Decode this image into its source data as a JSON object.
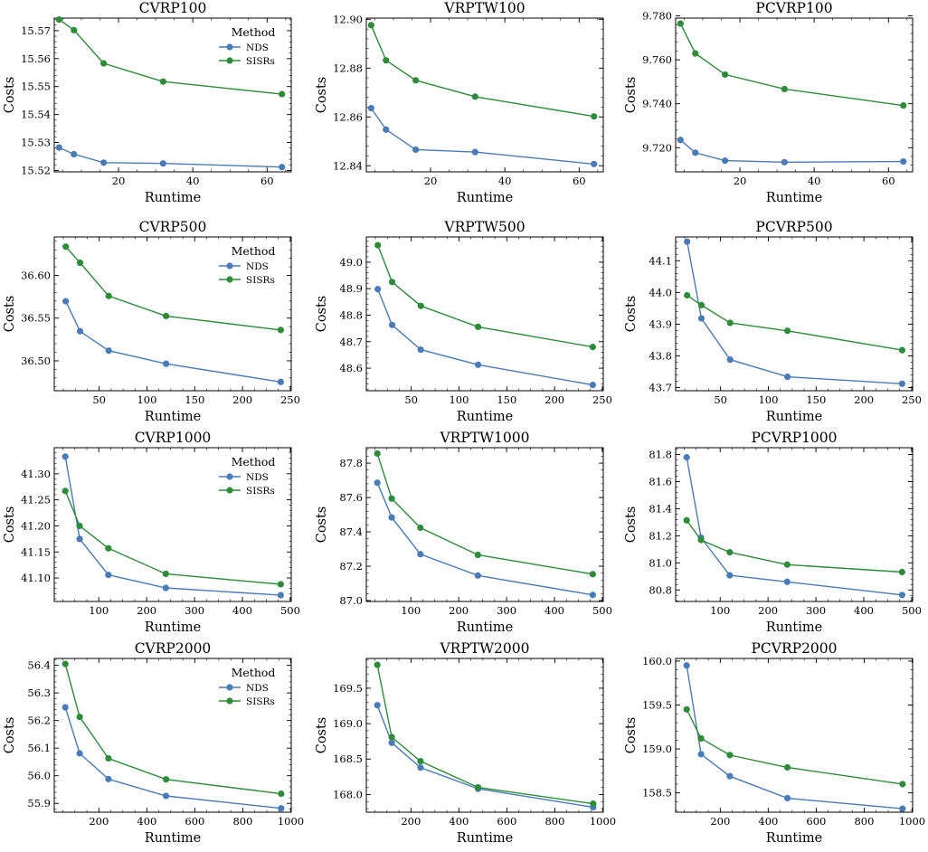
{
  "legend": {
    "title": "Method"
  },
  "colors": {
    "NDS": "#4a7bb7",
    "SISRs": "#2e8b3a"
  },
  "chart_data": [
    {
      "type": "line",
      "title": "CVRP100",
      "xlabel": "Runtime",
      "ylabel": "Costs",
      "x": [
        4,
        8,
        16,
        32,
        64
      ],
      "xlim": [
        2.7,
        66.5
      ],
      "ylim": [
        15.5195,
        15.5745
      ],
      "xticks": [
        20,
        40,
        60
      ],
      "yticks": [
        15.52,
        15.53,
        15.54,
        15.55,
        15.56,
        15.57
      ],
      "ytick_labels": [
        "15.52",
        "15.53",
        "15.54",
        "15.55",
        "15.56",
        "15.57"
      ],
      "series": [
        {
          "name": "NDS",
          "values": [
            15.5282,
            15.5258,
            15.5228,
            15.5225,
            15.5212
          ]
        },
        {
          "name": "SISRs",
          "values": [
            15.574,
            15.5702,
            15.5583,
            15.5518,
            15.5473
          ]
        }
      ],
      "legend": true
    },
    {
      "type": "line",
      "title": "VRPTW100",
      "xlabel": "Runtime",
      "ylabel": "Costs",
      "x": [
        4,
        8,
        16,
        32,
        64
      ],
      "xlim": [
        2.7,
        66.5
      ],
      "ylim": [
        12.8375,
        12.9005
      ],
      "xticks": [
        20,
        40,
        60
      ],
      "yticks": [
        12.84,
        12.86,
        12.88,
        12.9
      ],
      "ytick_labels": [
        "12.84",
        "12.86",
        "12.88",
        "12.90"
      ],
      "series": [
        {
          "name": "NDS",
          "values": [
            12.8636,
            12.8548,
            12.8466,
            12.8456,
            12.8407
          ]
        },
        {
          "name": "SISRs",
          "values": [
            12.8976,
            12.8832,
            12.875,
            12.8683,
            12.8602
          ]
        }
      ],
      "legend": false
    },
    {
      "type": "line",
      "title": "PCVRP100",
      "xlabel": "Runtime",
      "ylabel": "Costs",
      "x": [
        4,
        8,
        16,
        32,
        64
      ],
      "xlim": [
        2.7,
        66.5
      ],
      "ylim": [
        9.709,
        9.779
      ],
      "xticks": [
        20,
        40,
        60
      ],
      "yticks": [
        9.72,
        9.74,
        9.76,
        9.78
      ],
      "ytick_labels": [
        "9.720",
        "9.740",
        "9.760",
        "9.780"
      ],
      "series": [
        {
          "name": "NDS",
          "values": [
            9.7235,
            9.7177,
            9.7141,
            9.7134,
            9.7137
          ]
        },
        {
          "name": "SISRs",
          "values": [
            9.7765,
            9.7629,
            9.7533,
            9.7467,
            9.7392
          ]
        }
      ],
      "legend": false
    },
    {
      "type": "line",
      "title": "CVRP500",
      "xlabel": "Runtime",
      "ylabel": "Costs",
      "x": [
        15,
        30,
        60,
        120,
        240
      ],
      "xlim": [
        3,
        251
      ],
      "ylim": [
        36.465,
        36.645
      ],
      "xticks": [
        50,
        100,
        150,
        200,
        250
      ],
      "yticks": [
        36.5,
        36.55,
        36.6
      ],
      "ytick_labels": [
        "36.50",
        "36.55",
        "36.60"
      ],
      "series": [
        {
          "name": "NDS",
          "values": [
            36.5697,
            36.5346,
            36.5119,
            36.4966,
            36.4753
          ]
        },
        {
          "name": "SISRs",
          "values": [
            36.6337,
            36.6148,
            36.5759,
            36.5525,
            36.5361
          ]
        }
      ],
      "legend": true
    },
    {
      "type": "line",
      "title": "VRPTW500",
      "xlabel": "Runtime",
      "ylabel": "Costs",
      "x": [
        15,
        30,
        60,
        120,
        240
      ],
      "xlim": [
        3,
        251
      ],
      "ylim": [
        48.515,
        49.095
      ],
      "xticks": [
        50,
        100,
        150,
        200,
        250
      ],
      "yticks": [
        48.6,
        48.7,
        48.8,
        48.9,
        49.0
      ],
      "ytick_labels": [
        "48.6",
        "48.7",
        "48.8",
        "48.9",
        "49.0"
      ],
      "series": [
        {
          "name": "NDS",
          "values": [
            48.898,
            48.763,
            48.67,
            48.613,
            48.537
          ]
        },
        {
          "name": "SISRs",
          "values": [
            49.064,
            48.925,
            48.835,
            48.756,
            48.68
          ]
        }
      ],
      "legend": false
    },
    {
      "type": "line",
      "title": "PCVRP500",
      "xlabel": "Runtime",
      "ylabel": "Costs",
      "x": [
        15,
        30,
        60,
        120,
        240
      ],
      "xlim": [
        3,
        251
      ],
      "ylim": [
        43.69,
        44.175
      ],
      "xticks": [
        50,
        100,
        150,
        200,
        250
      ],
      "yticks": [
        43.7,
        43.8,
        43.9,
        44.0,
        44.1
      ],
      "ytick_labels": [
        "43.7",
        "43.8",
        "43.9",
        "44.0",
        "44.1"
      ],
      "series": [
        {
          "name": "NDS",
          "values": [
            44.16,
            43.918,
            43.788,
            43.734,
            43.712
          ]
        },
        {
          "name": "SISRs",
          "values": [
            43.991,
            43.96,
            43.904,
            43.879,
            43.818
          ]
        }
      ],
      "legend": false
    },
    {
      "type": "line",
      "title": "CVRP1000",
      "xlabel": "Runtime",
      "ylabel": "Costs",
      "x": [
        30,
        60,
        120,
        240,
        480
      ],
      "xlim": [
        7,
        502
      ],
      "ylim": [
        41.055,
        41.35
      ],
      "xticks": [
        100,
        200,
        300,
        400,
        500
      ],
      "yticks": [
        41.1,
        41.15,
        41.2,
        41.25,
        41.3
      ],
      "ytick_labels": [
        "41.10",
        "41.15",
        "41.20",
        "41.25",
        "41.30"
      ],
      "series": [
        {
          "name": "NDS",
          "values": [
            41.333,
            41.175,
            41.106,
            41.081,
            41.067
          ]
        },
        {
          "name": "SISRs",
          "values": [
            41.267,
            41.2,
            41.157,
            41.108,
            41.088
          ]
        }
      ],
      "legend": true
    },
    {
      "type": "line",
      "title": "VRPTW1000",
      "xlabel": "Runtime",
      "ylabel": "Costs",
      "x": [
        30,
        60,
        120,
        240,
        480
      ],
      "xlim": [
        7,
        502
      ],
      "ylim": [
        86.995,
        87.89
      ],
      "xticks": [
        100,
        200,
        300,
        400,
        500
      ],
      "yticks": [
        87.0,
        87.2,
        87.4,
        87.6,
        87.8
      ],
      "ytick_labels": [
        "87.0",
        "87.2",
        "87.4",
        "87.6",
        "87.8"
      ],
      "series": [
        {
          "name": "NDS",
          "values": [
            87.686,
            87.484,
            87.27,
            87.146,
            87.033
          ]
        },
        {
          "name": "SISRs",
          "values": [
            87.856,
            87.594,
            87.424,
            87.266,
            87.154
          ]
        }
      ],
      "legend": false
    },
    {
      "type": "line",
      "title": "PCVRP1000",
      "xlabel": "Runtime",
      "ylabel": "Costs",
      "x": [
        30,
        60,
        120,
        240,
        480
      ],
      "xlim": [
        7,
        502
      ],
      "ylim": [
        80.715,
        81.85
      ],
      "xticks": [
        100,
        200,
        300,
        400,
        500
      ],
      "yticks": [
        80.8,
        81.0,
        81.2,
        81.4,
        81.6,
        81.8
      ],
      "ytick_labels": [
        "80.8",
        "81.0",
        "81.2",
        "81.4",
        "81.6",
        "81.8"
      ],
      "series": [
        {
          "name": "NDS",
          "values": [
            81.779,
            81.186,
            80.908,
            80.86,
            80.763
          ]
        },
        {
          "name": "SISRs",
          "values": [
            81.314,
            81.169,
            81.078,
            80.987,
            80.932
          ]
        }
      ],
      "legend": false
    },
    {
      "type": "line",
      "title": "CVRP2000",
      "xlabel": "Runtime",
      "ylabel": "Costs",
      "x": [
        60,
        120,
        240,
        480,
        960
      ],
      "xlim": [
        14,
        1002
      ],
      "ylim": [
        55.868,
        56.425
      ],
      "xticks": [
        200,
        400,
        600,
        800,
        1000
      ],
      "yticks": [
        55.9,
        56.0,
        56.1,
        56.2,
        56.3,
        56.4
      ],
      "ytick_labels": [
        "55.9",
        "56.0",
        "56.1",
        "56.2",
        "56.3",
        "56.4"
      ],
      "series": [
        {
          "name": "NDS",
          "values": [
            56.248,
            56.081,
            55.988,
            55.927,
            55.882
          ]
        },
        {
          "name": "SISRs",
          "values": [
            56.405,
            56.213,
            56.063,
            55.987,
            55.935
          ]
        }
      ],
      "legend": true
    },
    {
      "type": "line",
      "title": "VRPTW2000",
      "xlabel": "Runtime",
      "ylabel": "Costs",
      "x": [
        60,
        120,
        240,
        480,
        960
      ],
      "xlim": [
        14,
        1002
      ],
      "ylim": [
        167.75,
        169.92
      ],
      "xticks": [
        200,
        400,
        600,
        800,
        1000
      ],
      "yticks": [
        168.0,
        168.5,
        169.0,
        169.5
      ],
      "ytick_labels": [
        "168.0",
        "168.5",
        "169.0",
        "169.5"
      ],
      "series": [
        {
          "name": "NDS",
          "values": [
            169.26,
            168.73,
            168.38,
            168.08,
            167.82
          ]
        },
        {
          "name": "SISRs",
          "values": [
            169.83,
            168.81,
            168.47,
            168.1,
            167.87
          ]
        }
      ],
      "legend": false
    },
    {
      "type": "line",
      "title": "PCVRP2000",
      "xlabel": "Runtime",
      "ylabel": "Costs",
      "x": [
        60,
        120,
        240,
        480,
        960
      ],
      "xlim": [
        14,
        1002
      ],
      "ylim": [
        158.28,
        160.03
      ],
      "xticks": [
        200,
        400,
        600,
        800,
        1000
      ],
      "yticks": [
        158.5,
        159.0,
        159.5,
        160.0
      ],
      "ytick_labels": [
        "158.5",
        "159.0",
        "159.5",
        "160.0"
      ],
      "series": [
        {
          "name": "NDS",
          "values": [
            159.95,
            158.94,
            158.69,
            158.44,
            158.32
          ]
        },
        {
          "name": "SISRs",
          "values": [
            159.45,
            159.12,
            158.93,
            158.79,
            158.6
          ]
        }
      ],
      "legend": false
    }
  ]
}
